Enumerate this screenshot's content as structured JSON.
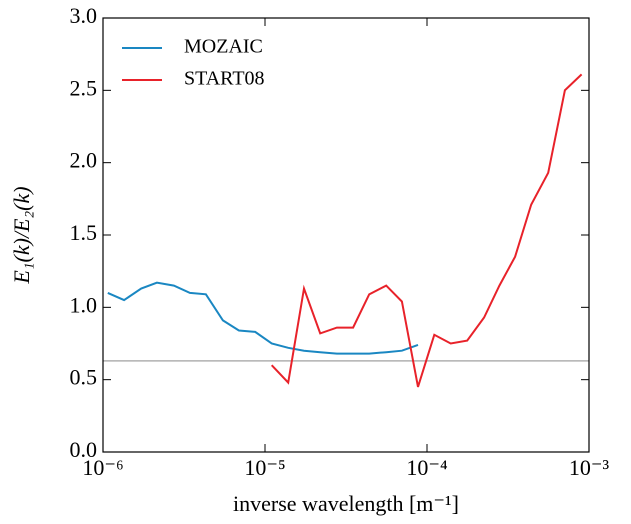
{
  "chart_data": {
    "type": "line",
    "xlabel": "inverse wavelength [m⁻¹]",
    "ylabel": "E₁(k)/E₂(k)",
    "xscale": "log",
    "xlim": [
      1e-06,
      0.001
    ],
    "xticks": [
      {
        "value": 1e-06,
        "label": "10⁻⁶"
      },
      {
        "value": 1e-05,
        "label": "10⁻⁵"
      },
      {
        "value": 0.0001,
        "label": "10⁻⁴"
      },
      {
        "value": 0.001,
        "label": "10⁻³"
      }
    ],
    "ylim": [
      0,
      3
    ],
    "yticks": [
      {
        "value": 0,
        "label": "0.0"
      },
      0.5,
      {
        "value": 1,
        "label": "1.0"
      },
      1.5,
      {
        "value": 2,
        "label": "2.0"
      },
      2.5,
      {
        "value": 3,
        "label": "3.0"
      }
    ],
    "reference_line": {
      "value": 0.63,
      "color": "#b0b0b0"
    },
    "legend": "upper left",
    "series": [
      {
        "name": "MOZAIC",
        "color": "#1a87c2",
        "x": [
          1.07e-06,
          1.35e-06,
          1.72e-06,
          2.15e-06,
          2.74e-06,
          3.44e-06,
          4.32e-06,
          5.5e-06,
          6.9e-06,
          8.7e-06,
          1.1e-05,
          1.39e-05,
          1.74e-05,
          2.19e-05,
          2.78e-05,
          3.5e-05,
          4.4e-05,
          5.6e-05,
          7e-05,
          8.8e-05
        ],
        "values": [
          1.1,
          1.05,
          1.13,
          1.17,
          1.15,
          1.1,
          1.09,
          0.91,
          0.84,
          0.83,
          0.75,
          0.72,
          0.7,
          0.69,
          0.68,
          0.68,
          0.68,
          0.69,
          0.7,
          0.74
        ]
      },
      {
        "name": "START08",
        "color": "#e8222a",
        "x": [
          1.1e-05,
          1.39e-05,
          1.74e-05,
          2.19e-05,
          2.78e-05,
          3.5e-05,
          4.4e-05,
          5.6e-05,
          7e-05,
          8.8e-05,
          0.000111,
          0.00014,
          0.000177,
          0.000225,
          0.00028,
          0.00035,
          0.00044,
          0.00056,
          0.00071,
          0.0009
        ],
        "values": [
          0.6,
          0.48,
          1.13,
          0.82,
          0.86,
          0.86,
          1.09,
          1.15,
          1.04,
          0.45,
          0.81,
          0.75,
          0.77,
          0.93,
          1.15,
          1.35,
          1.71,
          1.93,
          2.5,
          2.61
        ]
      }
    ]
  }
}
